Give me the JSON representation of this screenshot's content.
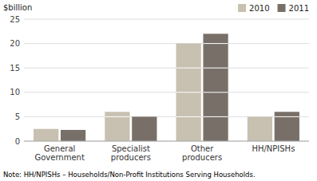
{
  "chart_data": {
    "type": "bar",
    "y_label": "$billion",
    "categories": [
      "General\nGovernment",
      "Specialist\nproducers",
      "Other\nproducers",
      "HH/NPISHs"
    ],
    "series": [
      {
        "name": "2010",
        "color": "#c8c0b0",
        "values": [
          2.5,
          6.0,
          20.0,
          5.0
        ]
      },
      {
        "name": "2011",
        "color": "#787068",
        "values": [
          2.3,
          5.0,
          22.0,
          6.0
        ]
      }
    ],
    "ylim": [
      0,
      25
    ],
    "yticks": [
      0,
      5,
      10,
      15,
      20,
      25
    ],
    "grid": true,
    "legend": "upper right",
    "annotations": [
      "Note: HH/NPISHs – Households/Non-Profit Institutions Serving Households."
    ]
  }
}
